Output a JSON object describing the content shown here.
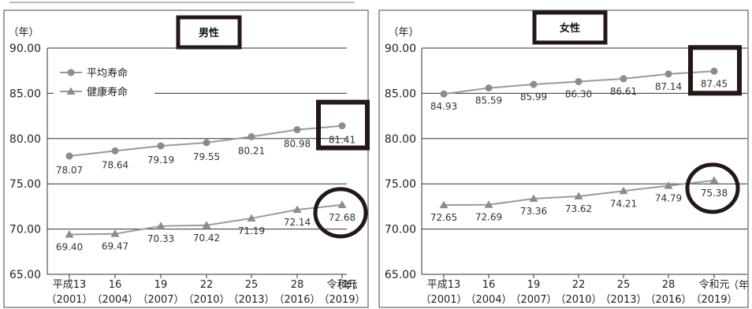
{
  "chart_data": [
    {
      "type": "line",
      "title": "男性",
      "ylabel": "（年）",
      "xlabel": "（年）",
      "ylim": [
        65,
        90
      ],
      "yticks": [
        "65.00",
        "70.00",
        "75.00",
        "80.00",
        "85.00",
        "90.00"
      ],
      "categories": [
        "平成13",
        "16",
        "19",
        "22",
        "25",
        "28",
        "令和元"
      ],
      "categories_sub": [
        "（2001）",
        "（2004）",
        "（2007）",
        "（2010）",
        "（2013）",
        "（2016）",
        "（2019）"
      ],
      "grid": "horizontal",
      "legend_position": "top-left",
      "series": [
        {
          "name": "平均寿命",
          "marker": "circle",
          "values": [
            78.07,
            78.64,
            79.19,
            79.55,
            80.21,
            80.98,
            81.41
          ],
          "labels": [
            "78.07",
            "78.64",
            "79.19",
            "79.55",
            "80.21",
            "80.98",
            "81.41"
          ]
        },
        {
          "name": "健康寿命",
          "marker": "triangle",
          "values": [
            69.4,
            69.47,
            70.33,
            70.42,
            71.19,
            72.14,
            72.68
          ],
          "labels": [
            "69.40",
            "69.47",
            "70.33",
            "70.42",
            "71.19",
            "72.14",
            "72.68"
          ]
        }
      ]
    },
    {
      "type": "line",
      "title": "女性",
      "ylabel": "（年）",
      "xlabel": "（年",
      "ylim": [
        65,
        90
      ],
      "yticks": [
        "65.00",
        "70.00",
        "75.00",
        "80.00",
        "85.00",
        "90.00"
      ],
      "categories": [
        "平成13",
        "16",
        "19",
        "22",
        "25",
        "28",
        "令和元"
      ],
      "categories_sub": [
        "（2001）",
        "（2004）",
        "（2007）",
        "（2010）",
        "（2013）",
        "（2016）",
        "（2019）"
      ],
      "grid": "horizontal",
      "series": [
        {
          "name": "",
          "marker": "circle",
          "values": [
            84.93,
            85.59,
            85.99,
            86.3,
            86.61,
            87.14,
            87.45
          ],
          "labels": [
            "84.93",
            "85.59",
            "85.99",
            "86.30",
            "86.61",
            "87.14",
            "87.45"
          ]
        },
        {
          "name": "",
          "marker": "triangle",
          "values": [
            72.65,
            72.69,
            73.36,
            73.62,
            74.21,
            74.79,
            75.38
          ],
          "labels": [
            "72.65",
            "72.69",
            "73.36",
            "73.62",
            "74.21",
            "74.79",
            "75.38"
          ]
        }
      ]
    }
  ],
  "colors": {
    "line": "#9a9a9a",
    "marker_fill": "#8c8c8c",
    "grid": "#333333",
    "highlight": "#231815"
  },
  "highlights": [
    {
      "chart": 0,
      "series": 0,
      "point": 6,
      "shape": "rect"
    },
    {
      "chart": 0,
      "series": 1,
      "point": 6,
      "shape": "circle"
    },
    {
      "chart": 1,
      "series": 0,
      "point": 6,
      "shape": "rect"
    },
    {
      "chart": 1,
      "series": 1,
      "point": 6,
      "shape": "circle"
    }
  ]
}
